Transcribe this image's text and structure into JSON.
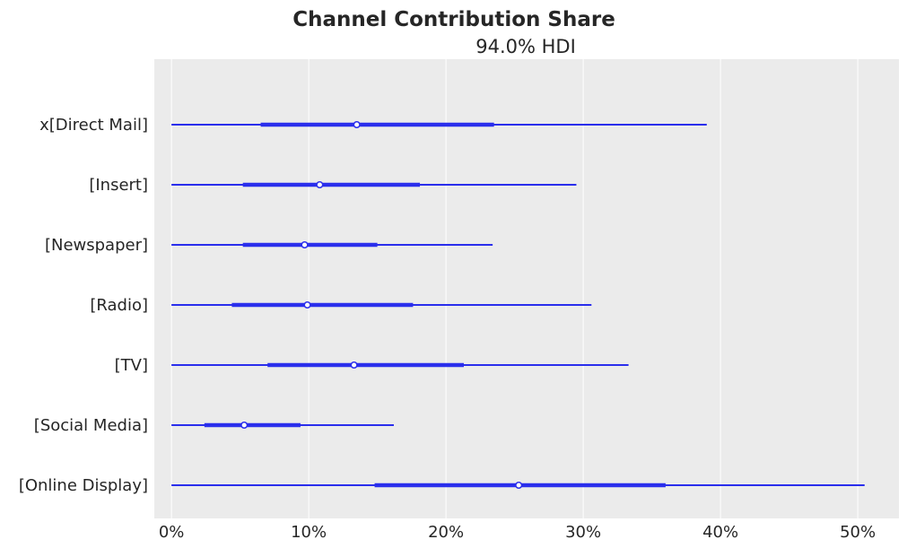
{
  "chart_data": {
    "type": "forest",
    "title": "Channel Contribution Share",
    "subtitle": "94.0% HDI",
    "xlabel": "",
    "ylabel": "",
    "xlim": [
      -0.0125,
      0.53
    ],
    "x_ticks": [
      0,
      0.1,
      0.2,
      0.3,
      0.4,
      0.5
    ],
    "x_tick_labels": [
      "0%",
      "10%",
      "20%",
      "30%",
      "40%",
      "50%"
    ],
    "grid": "vertical",
    "colors": {
      "background": "#ebebeb",
      "grid": "#ffffff",
      "series": "#2a2eec",
      "point_fill": "#ffffff"
    },
    "categories": [
      "x[Direct Mail]",
      "[Insert]",
      "[Newspaper]",
      "[Radio]",
      "[TV]",
      "[Social Media]",
      "[Online Display]"
    ],
    "intervals": [
      {
        "label": "x[Direct Mail]",
        "hdi_low": 0.0,
        "hdi_high": 0.39,
        "iqr_low": 0.065,
        "iqr_high": 0.235,
        "median": 0.135
      },
      {
        "label": "[Insert]",
        "hdi_low": 0.0,
        "hdi_high": 0.295,
        "iqr_low": 0.052,
        "iqr_high": 0.181,
        "median": 0.108
      },
      {
        "label": "[Newspaper]",
        "hdi_low": 0.0,
        "hdi_high": 0.234,
        "iqr_low": 0.052,
        "iqr_high": 0.15,
        "median": 0.097
      },
      {
        "label": "[Radio]",
        "hdi_low": 0.0,
        "hdi_high": 0.306,
        "iqr_low": 0.044,
        "iqr_high": 0.176,
        "median": 0.099
      },
      {
        "label": "[TV]",
        "hdi_low": 0.0,
        "hdi_high": 0.333,
        "iqr_low": 0.07,
        "iqr_high": 0.213,
        "median": 0.133
      },
      {
        "label": "[Social Media]",
        "hdi_low": 0.0,
        "hdi_high": 0.162,
        "iqr_low": 0.024,
        "iqr_high": 0.094,
        "median": 0.053
      },
      {
        "label": "[Online Display]",
        "hdi_low": 0.0,
        "hdi_high": 0.505,
        "iqr_low": 0.148,
        "iqr_high": 0.36,
        "median": 0.253
      }
    ]
  }
}
